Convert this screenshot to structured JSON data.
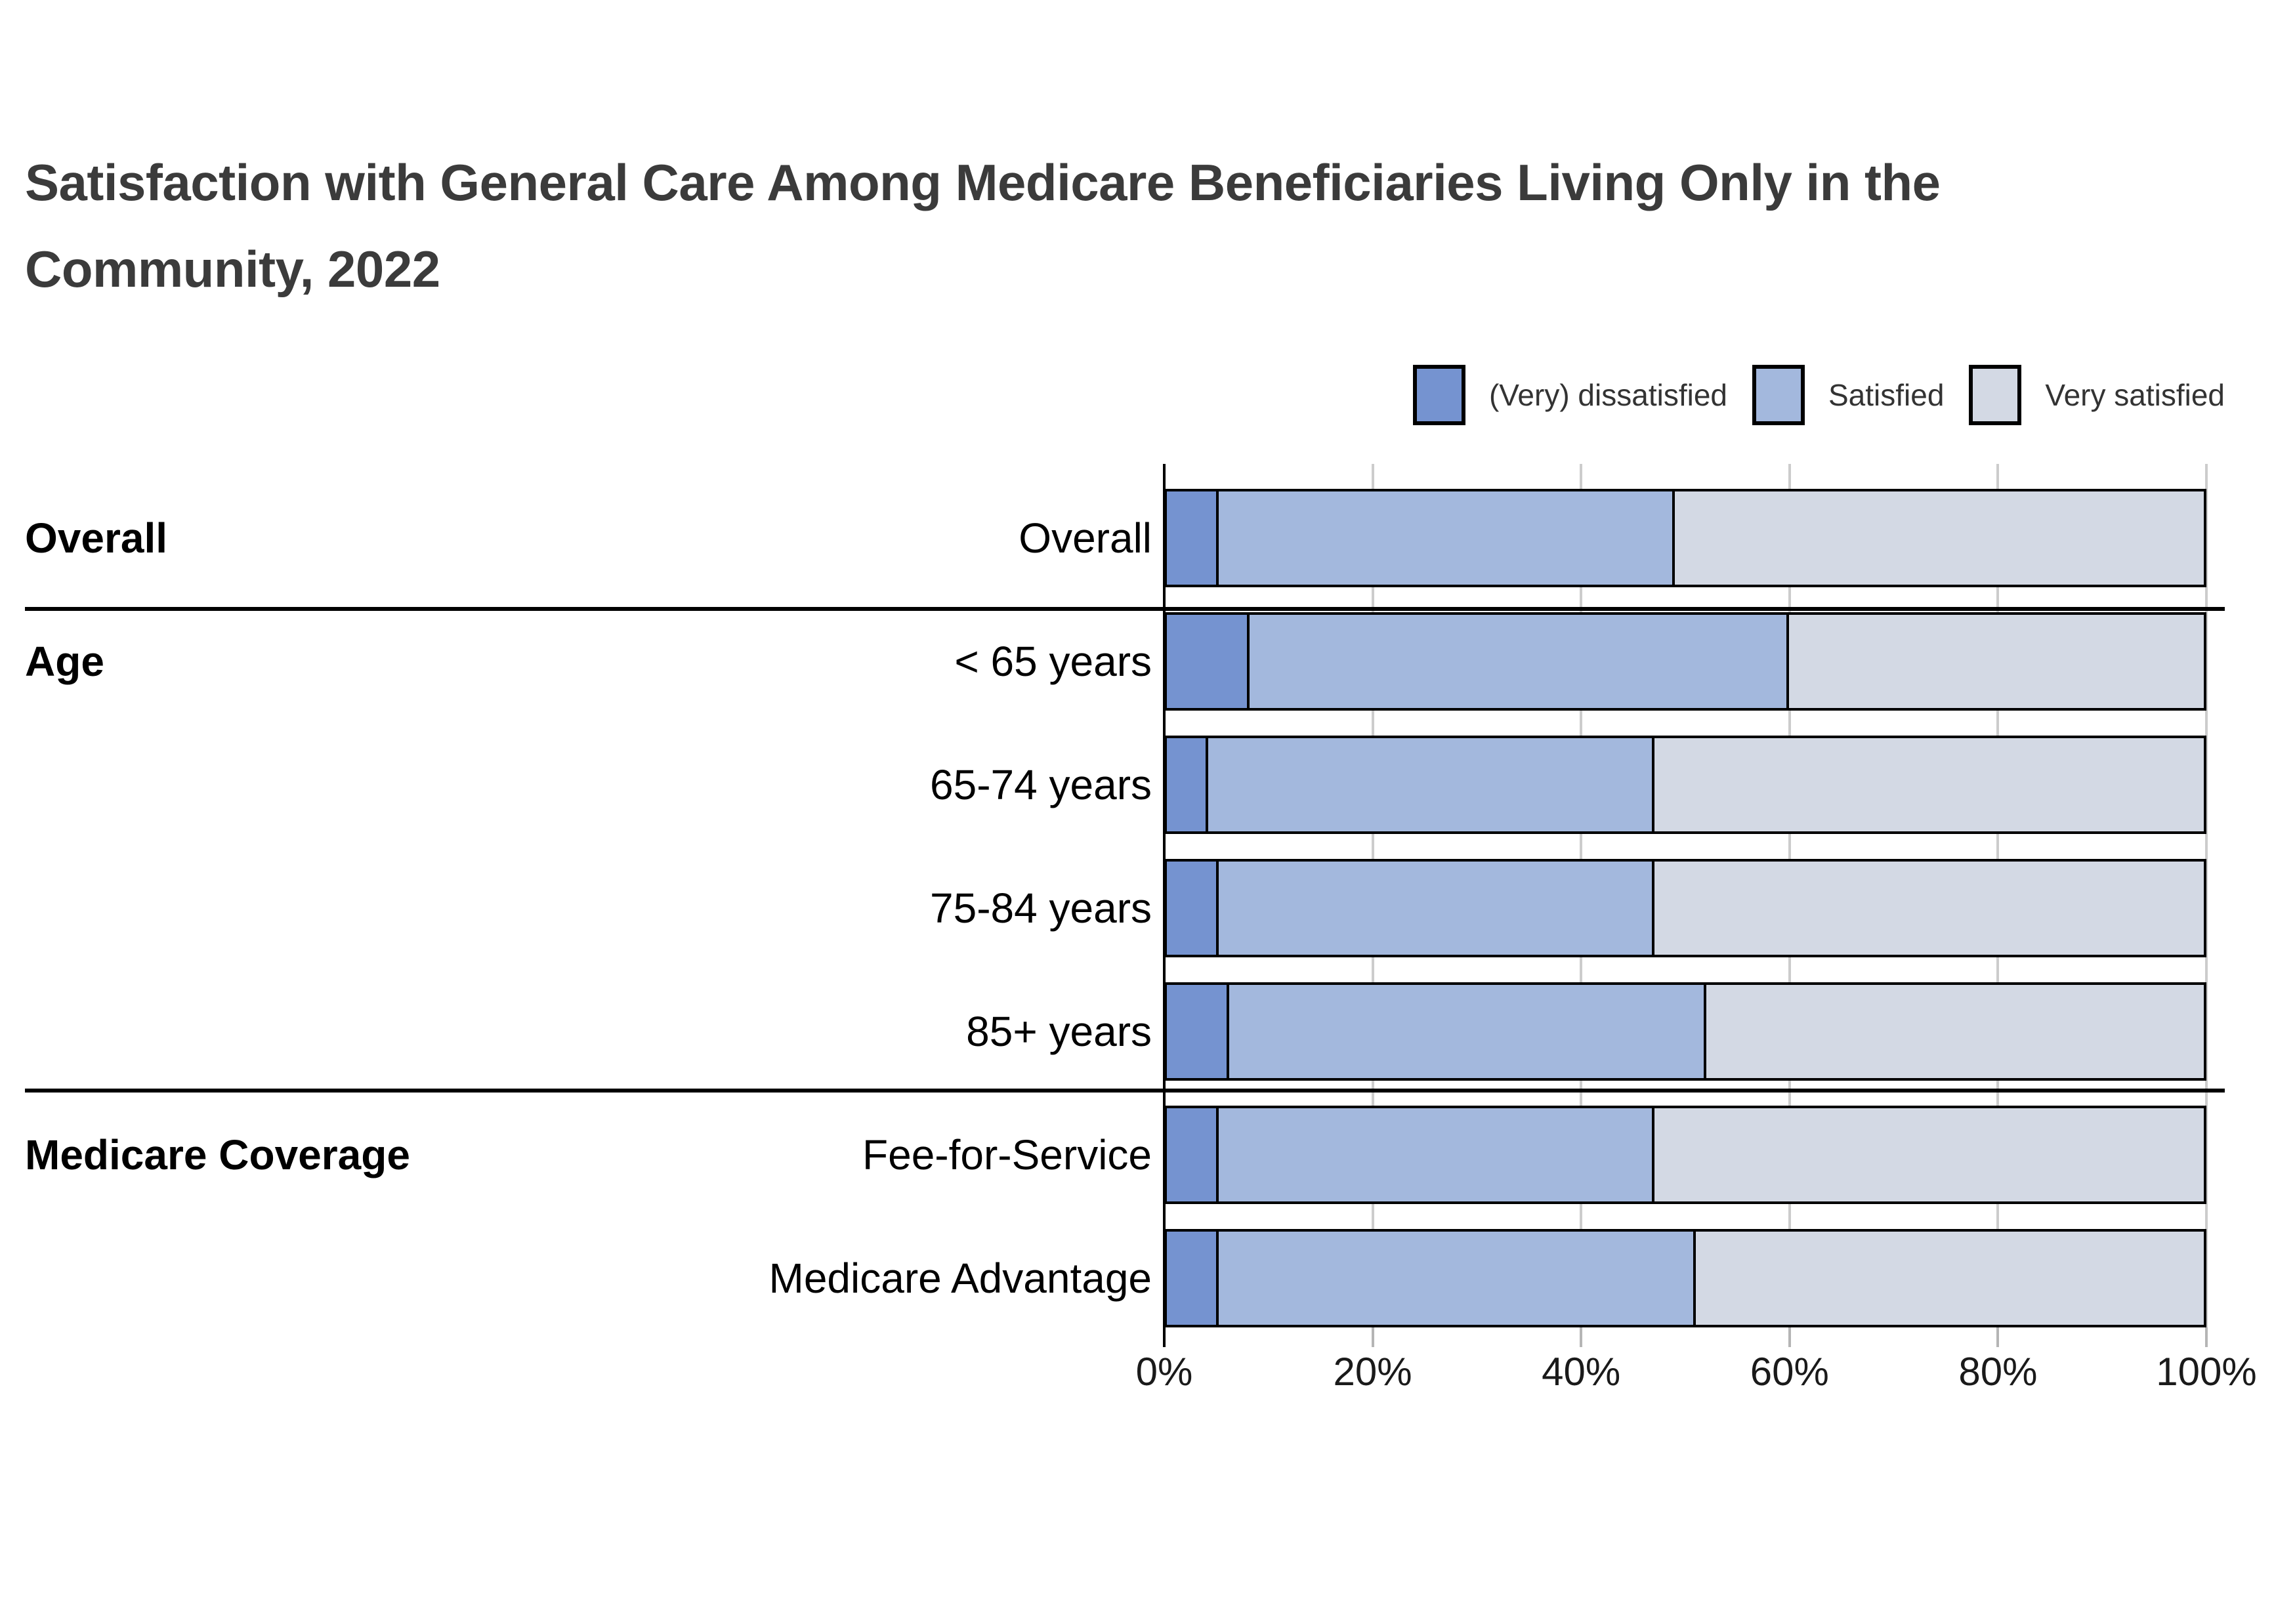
{
  "title_lines": [
    "Satisfaction with General Care Among Medicare Beneficiaries Living Only in the",
    "Community, 2022"
  ],
  "legend": [
    {
      "label": "(Very) dissatisfied",
      "color": "#7593d0"
    },
    {
      "label": "Satisfied",
      "color": "#a3b8dd"
    },
    {
      "label": "Very satisfied",
      "color": "#d3d9e4"
    }
  ],
  "chart_data": {
    "type": "bar",
    "orientation": "horizontal",
    "stacked": true,
    "unit": "percent",
    "categories": [
      "Overall",
      "< 65 years",
      "65-74 years",
      "75-84 years",
      "85+ years",
      "Fee-for-Service",
      "Medicare Advantage"
    ],
    "groups": [
      {
        "label": "Overall",
        "rows": [
          "Overall"
        ]
      },
      {
        "label": "Age",
        "rows": [
          "< 65 years",
          "65-74 years",
          "75-84 years",
          "85+ years"
        ]
      },
      {
        "label": "Medicare Coverage",
        "rows": [
          "Fee-for-Service",
          "Medicare Advantage"
        ]
      }
    ],
    "series": [
      {
        "name": "(Very) dissatisfied",
        "values": [
          5,
          8,
          4,
          5,
          6,
          5,
          5
        ]
      },
      {
        "name": "Satisfied",
        "values": [
          44,
          52,
          43,
          42,
          46,
          42,
          46
        ]
      },
      {
        "name": "Very satisfied",
        "values": [
          51,
          40,
          53,
          53,
          48,
          53,
          49
        ]
      }
    ],
    "x_ticks": [
      "0%",
      "20%",
      "40%",
      "60%",
      "80%",
      "100%"
    ],
    "xlim": [
      0,
      100
    ],
    "grid": true,
    "legend_position": "top-right"
  }
}
